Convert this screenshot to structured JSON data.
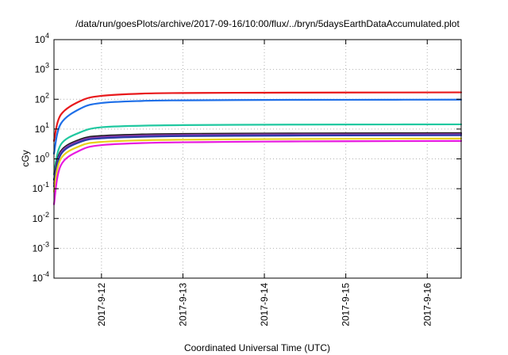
{
  "chart_data": {
    "type": "line",
    "title": "/data/run/goesPlots/archive/2017-09-16/10:00/flux/../bryn/5daysEarthDataAccumulated.plot",
    "xlabel": "Coordinated Universal Time (UTC)",
    "ylabel": "cGy",
    "y_scale": "log",
    "ylim": [
      0.0001,
      10000
    ],
    "xlim": [
      "2017-09-11 10:00",
      "2017-09-16 10:00"
    ],
    "grid": true,
    "legend": "none",
    "x_ticks": [
      {
        "value": "2017-09-12 00:00",
        "label": "2017-9-12"
      },
      {
        "value": "2017-09-13 00:00",
        "label": "2017-9-13"
      },
      {
        "value": "2017-09-14 00:00",
        "label": "2017-9-14"
      },
      {
        "value": "2017-09-15 00:00",
        "label": "2017-9-15"
      },
      {
        "value": "2017-09-16 00:00",
        "label": "2017-9-16"
      }
    ],
    "y_ticks": [
      {
        "value": 0.0001,
        "base": "10",
        "exp": "-4"
      },
      {
        "value": 0.001,
        "base": "10",
        "exp": "-3"
      },
      {
        "value": 0.01,
        "base": "10",
        "exp": "-2"
      },
      {
        "value": 0.1,
        "base": "10",
        "exp": "-1"
      },
      {
        "value": 1,
        "base": "10",
        "exp": "0"
      },
      {
        "value": 10,
        "base": "10",
        "exp": "1"
      },
      {
        "value": 100,
        "base": "10",
        "exp": "2"
      },
      {
        "value": 1000,
        "base": "10",
        "exp": "3"
      },
      {
        "value": 10000,
        "base": "10",
        "exp": "4"
      }
    ],
    "series": [
      {
        "color": "#e8191c",
        "x": [
          "2017-09-11 10:00",
          "2017-09-11 12:00",
          "2017-09-11 18:00",
          "2017-09-12 00:00",
          "2017-09-12 12:00",
          "2017-09-13 00:00",
          "2017-09-14 00:00",
          "2017-09-15 00:00",
          "2017-09-16 10:00"
        ],
        "values": [
          4,
          30,
          90,
          130,
          155,
          162,
          166,
          168,
          170
        ]
      },
      {
        "color": "#1e6fe8",
        "x": [
          "2017-09-11 10:00",
          "2017-09-11 12:00",
          "2017-09-11 18:00",
          "2017-09-12 00:00",
          "2017-09-12 12:00",
          "2017-09-13 00:00",
          "2017-09-14 00:00",
          "2017-09-15 00:00",
          "2017-09-16 10:00"
        ],
        "values": [
          1.5,
          15,
          50,
          75,
          88,
          92,
          95,
          96,
          97
        ]
      },
      {
        "color": "#20c8a0",
        "x": [
          "2017-09-11 10:00",
          "2017-09-11 12:00",
          "2017-09-11 18:00",
          "2017-09-12 00:00",
          "2017-09-12 12:00",
          "2017-09-13 00:00",
          "2017-09-14 00:00",
          "2017-09-15 00:00",
          "2017-09-16 10:00"
        ],
        "values": [
          0.3,
          3,
          8,
          11.5,
          13,
          13.6,
          14,
          14.2,
          14.4
        ]
      },
      {
        "color": "#1a1a1a",
        "x": [
          "2017-09-11 10:00",
          "2017-09-11 12:00",
          "2017-09-11 18:00",
          "2017-09-12 00:00",
          "2017-09-12 12:00",
          "2017-09-13 00:00",
          "2017-09-14 00:00",
          "2017-09-15 00:00",
          "2017-09-16 10:00"
        ],
        "values": [
          0.2,
          1.8,
          4.6,
          5.9,
          6.6,
          6.9,
          7.1,
          7.2,
          7.3
        ]
      },
      {
        "color": "#8a3aa8",
        "x": [
          "2017-09-11 10:00",
          "2017-09-11 12:00",
          "2017-09-11 18:00",
          "2017-09-12 00:00",
          "2017-09-12 12:00",
          "2017-09-13 00:00",
          "2017-09-14 00:00",
          "2017-09-15 00:00",
          "2017-09-16 10:00"
        ],
        "values": [
          0.15,
          1.6,
          4.2,
          5.4,
          6.1,
          6.4,
          6.6,
          6.7,
          6.8
        ]
      },
      {
        "color": "#2a3aa8",
        "x": [
          "2017-09-11 10:00",
          "2017-09-11 12:00",
          "2017-09-11 18:00",
          "2017-09-12 00:00",
          "2017-09-12 12:00",
          "2017-09-13 00:00",
          "2017-09-14 00:00",
          "2017-09-15 00:00",
          "2017-09-16 10:00"
        ],
        "values": [
          0.12,
          1.4,
          3.8,
          4.9,
          5.5,
          5.8,
          6.0,
          6.1,
          6.2
        ]
      },
      {
        "color": "#e8d21a",
        "x": [
          "2017-09-11 10:00",
          "2017-09-11 12:00",
          "2017-09-11 18:00",
          "2017-09-12 00:00",
          "2017-09-12 12:00",
          "2017-09-13 00:00",
          "2017-09-14 00:00",
          "2017-09-15 00:00",
          "2017-09-16 10:00"
        ],
        "values": [
          0.08,
          1.0,
          2.8,
          3.7,
          4.2,
          4.4,
          4.6,
          4.7,
          4.8
        ]
      },
      {
        "color": "#e81ae0",
        "x": [
          "2017-09-11 10:00",
          "2017-09-11 12:00",
          "2017-09-11 18:00",
          "2017-09-12 00:00",
          "2017-09-12 12:00",
          "2017-09-13 00:00",
          "2017-09-14 00:00",
          "2017-09-15 00:00",
          "2017-09-16 10:00"
        ],
        "values": [
          0.03,
          0.6,
          2.0,
          2.9,
          3.4,
          3.6,
          3.8,
          3.9,
          4.0
        ]
      }
    ]
  }
}
